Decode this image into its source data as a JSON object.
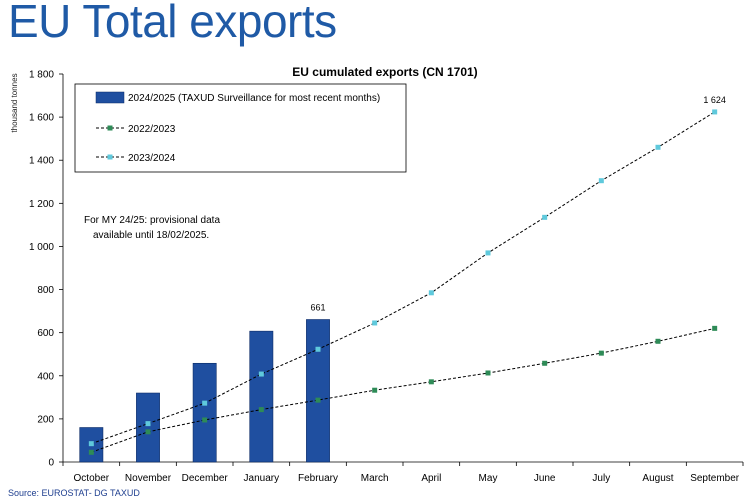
{
  "slide": {
    "title": "EU Total exports",
    "source": "Source: EUROSTAT-  DG TAXUD"
  },
  "chart_data": {
    "type": "bar",
    "title": "EU cumulated exports (CN 1701)",
    "ylabel": "thousand tonnes",
    "xlabel": "",
    "ylim": [
      0,
      1800
    ],
    "yticks": [
      0,
      200,
      400,
      600,
      800,
      1000,
      1200,
      1400,
      1600,
      1800
    ],
    "ytick_labels": [
      "0",
      "200",
      "400",
      "600",
      "800",
      "1 000",
      "1 200",
      "1 400",
      "1 600",
      "1 800"
    ],
    "categories": [
      "October",
      "November",
      "December",
      "January",
      "February",
      "March",
      "April",
      "May",
      "June",
      "July",
      "August",
      "September"
    ],
    "series": [
      {
        "name": "2024/2025 (TAXUD Surveillance for most recent months)",
        "kind": "bar",
        "color": "#1f4fa0",
        "values": [
          160,
          320,
          458,
          607,
          661,
          null,
          null,
          null,
          null,
          null,
          null,
          null
        ]
      },
      {
        "name": "2022/2023",
        "kind": "line",
        "color": "#2e8b57",
        "marker": "square",
        "values": [
          45,
          140,
          195,
          243,
          287,
          333,
          372,
          413,
          458,
          505,
          560,
          620
        ]
      },
      {
        "name": "2023/2024",
        "kind": "line",
        "color": "#5fc9dc",
        "marker": "square",
        "values": [
          85,
          178,
          273,
          408,
          523,
          645,
          785,
          970,
          1135,
          1305,
          1460,
          1624
        ]
      }
    ],
    "data_labels": [
      {
        "text": "661",
        "category": "February",
        "value": 661
      },
      {
        "text": "1 624",
        "category": "September",
        "value": 1624
      }
    ],
    "annotation": "For MY 24/25: provisional data available until 18/02/2025.",
    "annotation_lines": [
      "For MY 24/25: provisional data",
      "available until 18/02/2025."
    ],
    "legend_placement": "top-left",
    "grid": false
  }
}
